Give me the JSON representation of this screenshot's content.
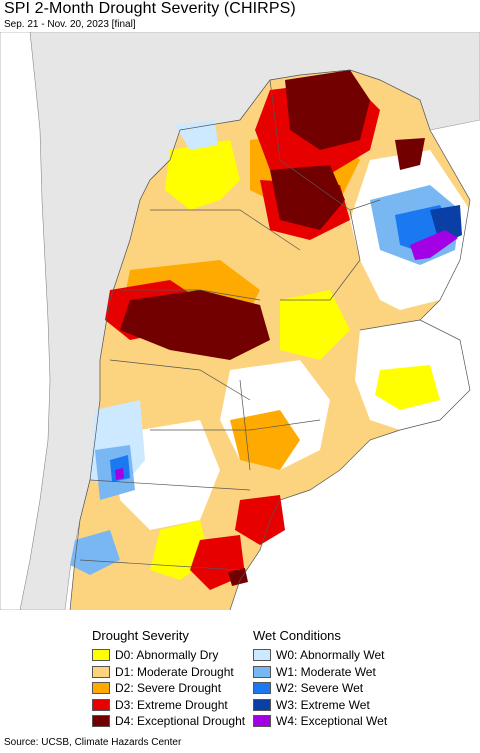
{
  "title": "SPI 2-Month Drought Severity (CHIRPS)",
  "subtitle": "Sep. 21 - Nov. 20, 2023 [final]",
  "legend": {
    "drought": {
      "heading": "Drought Severity",
      "items": [
        {
          "label": "D0: Abnormally Dry",
          "color": "#ffff00"
        },
        {
          "label": "D1: Moderate Drought",
          "color": "#fcd37f"
        },
        {
          "label": "D2: Severe Drought",
          "color": "#ffaa00"
        },
        {
          "label": "D3: Extreme Drought",
          "color": "#e60000"
        },
        {
          "label": "D4: Exceptional Drought",
          "color": "#730000"
        }
      ]
    },
    "wet": {
      "heading": "Wet Conditions",
      "items": [
        {
          "label": "W0: Abnormally Wet",
          "color": "#cce9ff"
        },
        {
          "label": "W1: Moderate Wet",
          "color": "#79b7f2"
        },
        {
          "label": "W2: Severe Wet",
          "color": "#1a78f0"
        },
        {
          "label": "W3: Extreme Wet",
          "color": "#0a3fa6"
        },
        {
          "label": "W4: Exceptional Wet",
          "color": "#a300e6"
        }
      ]
    }
  },
  "source": "Source: UCSB, Climate Hazards Center",
  "map_colors": {
    "background": "#ffffff",
    "neighbor_land": "#e6e6e6",
    "ocean": "#ffffff",
    "borders": "#555555"
  }
}
